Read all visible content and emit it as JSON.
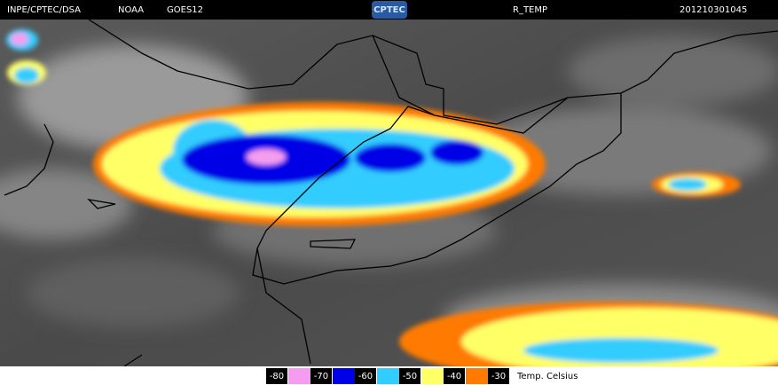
{
  "header": {
    "agency": "INPE/CPTEC/DSA",
    "source": "NOAA",
    "satellite": "GOES12",
    "logo": "CPTEC",
    "product": "R_TEMP",
    "timestamp": "201210301045"
  },
  "legend": {
    "items": [
      {
        "label": "-80",
        "color": "#f59cf0"
      },
      {
        "label": "-70",
        "color": "#0000e6"
      },
      {
        "label": "-60",
        "color": "#33ccff"
      },
      {
        "label": "-50",
        "color": "#ffff66"
      },
      {
        "label": "-40",
        "color": "#ff7a00"
      },
      {
        "label": "-30"
      }
    ],
    "title": "Temp. Celsius"
  }
}
